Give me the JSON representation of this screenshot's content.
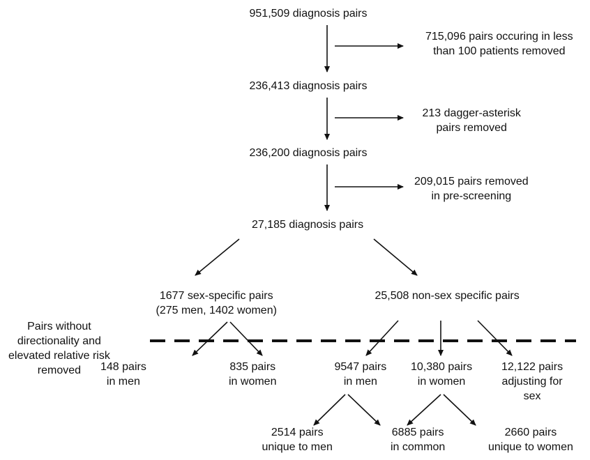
{
  "nodes": {
    "n1": {
      "lines": [
        "951,509 diagnosis pairs"
      ]
    },
    "r1": {
      "lines": [
        "715,096 pairs occuring in less",
        "than 100 patients removed"
      ]
    },
    "n2": {
      "lines": [
        "236,413 diagnosis pairs"
      ]
    },
    "r2": {
      "lines": [
        "213 dagger-asterisk",
        "pairs removed"
      ]
    },
    "n3": {
      "lines": [
        "236,200 diagnosis pairs"
      ]
    },
    "r3": {
      "lines": [
        "209,015 pairs removed",
        "in pre-screening"
      ]
    },
    "n4": {
      "lines": [
        "27,185 diagnosis pairs"
      ]
    },
    "sexs": {
      "lines": [
        "1677 sex-specific pairs",
        "(275 men, 1402 women)"
      ]
    },
    "nonsex": {
      "lines": [
        "25,508 non-sex specific pairs"
      ]
    },
    "side": {
      "lines": [
        "Pairs without",
        "directionality and",
        "elevated relative risk",
        "removed"
      ]
    },
    "m1": {
      "lines": [
        "148 pairs",
        "in men"
      ]
    },
    "w1": {
      "lines": [
        "835 pairs",
        "in women"
      ]
    },
    "m2": {
      "lines": [
        "9547 pairs",
        "in men"
      ]
    },
    "w2": {
      "lines": [
        "10,380 pairs",
        "in women"
      ]
    },
    "adj": {
      "lines": [
        "12,122 pairs",
        "adjusting for",
        "sex"
      ]
    },
    "um": {
      "lines": [
        "2514 pairs",
        "unique to men"
      ]
    },
    "com": {
      "lines": [
        "6885 pairs",
        "in common"
      ]
    },
    "uw": {
      "lines": [
        "2660 pairs",
        "unique to women"
      ]
    }
  },
  "edges": [
    {
      "from": "n1",
      "to": "n2"
    },
    {
      "from": "n1",
      "to": "r1"
    },
    {
      "from": "n2",
      "to": "n3"
    },
    {
      "from": "n2",
      "to": "r2"
    },
    {
      "from": "n3",
      "to": "n4"
    },
    {
      "from": "n3",
      "to": "r3"
    },
    {
      "from": "n4",
      "to": "sexs"
    },
    {
      "from": "n4",
      "to": "nonsex"
    },
    {
      "from": "sexs",
      "to": "m1"
    },
    {
      "from": "sexs",
      "to": "w1"
    },
    {
      "from": "nonsex",
      "to": "m2"
    },
    {
      "from": "nonsex",
      "to": "w2"
    },
    {
      "from": "nonsex",
      "to": "adj"
    },
    {
      "from": "m2",
      "to": "um"
    },
    {
      "from": "m2",
      "to": "com"
    },
    {
      "from": "w2",
      "to": "com"
    },
    {
      "from": "w2",
      "to": "uw"
    }
  ],
  "colors": {
    "line": "#111111",
    "text": "#111111",
    "background": "#ffffff"
  }
}
